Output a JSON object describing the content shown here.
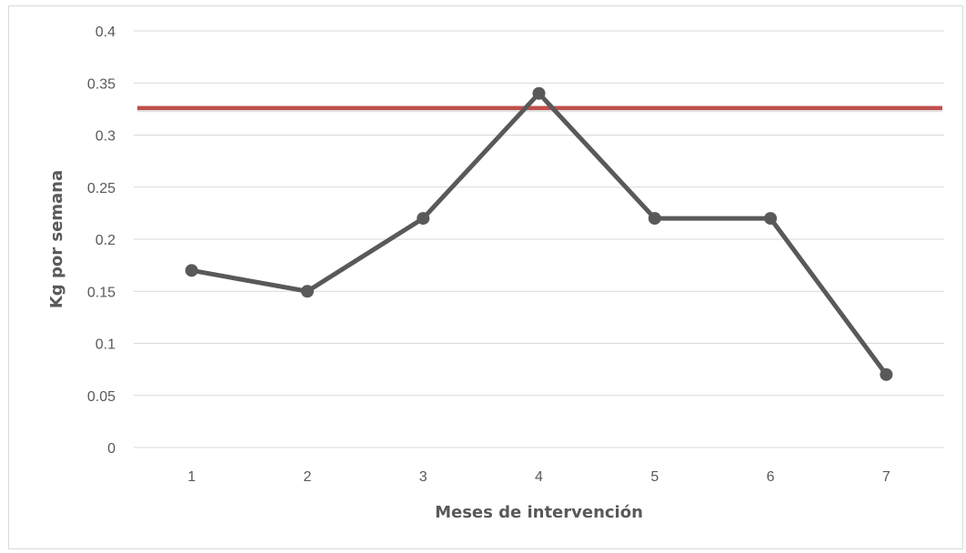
{
  "chart_data": {
    "type": "line",
    "title": "",
    "xlabel": "Meses de intervención",
    "ylabel": "Kg por semana",
    "categories": [
      "1",
      "2",
      "3",
      "4",
      "5",
      "6",
      "7"
    ],
    "series": [
      {
        "values": [
          0.17,
          0.15,
          0.22,
          0.34,
          0.22,
          0.22,
          0.07
        ],
        "color": "#595959"
      }
    ],
    "reference_line": {
      "value": 0.326,
      "color": "#c0504d"
    },
    "ylim": [
      0,
      0.4
    ],
    "yticks": [
      "0",
      "0.05",
      "0.1",
      "0.15",
      "0.2",
      "0.25",
      "0.3",
      "0.35",
      "0.4"
    ],
    "ytick_values": [
      0,
      0.05,
      0.1,
      0.15,
      0.2,
      0.25,
      0.3,
      0.35,
      0.4
    ],
    "grid": true,
    "gridline_color": "#d9d9d9",
    "legend": "none"
  }
}
